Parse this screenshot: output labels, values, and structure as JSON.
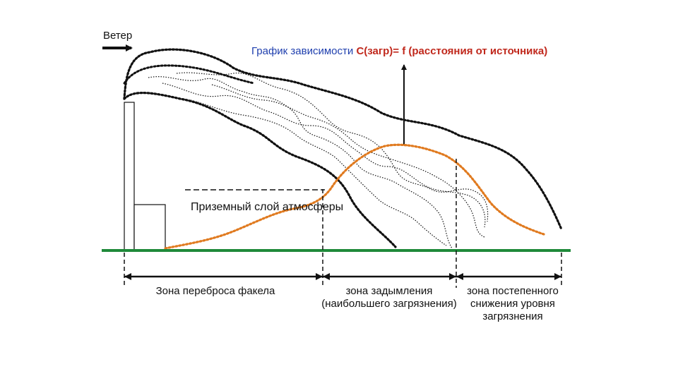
{
  "diagram": {
    "wind_label": "Ветер",
    "title": {
      "part1": "График зависимости ",
      "part2": "С(загр)= f (расстояния от источника)"
    },
    "ground_layer_label": "Приземный слой атмосферы",
    "zones": [
      {
        "lines": [
          "Зона переброса факела"
        ]
      },
      {
        "lines": [
          "зона задымления",
          "(наибольшего загрязнения)"
        ]
      },
      {
        "lines": [
          "зона постепенного",
          "снижения уровня",
          "загрязнения"
        ]
      }
    ],
    "colors": {
      "ground": "#1f8a3a",
      "curve": "#e07a1f",
      "title_blue": "#1f3fae",
      "title_red": "#c0281c",
      "ink": "#111111"
    }
  }
}
